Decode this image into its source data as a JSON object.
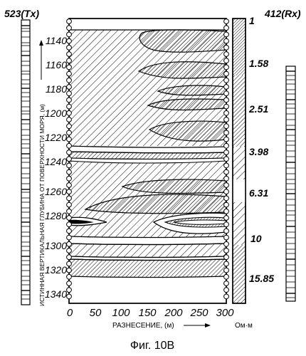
{
  "left_log": {
    "title": "523(Tx)"
  },
  "right_log": {
    "title": "412(Rx)"
  },
  "y_axis": {
    "label": "ИСТИННАЯ ВЕРТИКАЛЬНАЯ ГЛУБИНА ОТ ПОВЕРХНОСТИ МОРЯ, (м)",
    "ticks": [
      "1140",
      "1160",
      "1180",
      "1200",
      "1220",
      "1240",
      "1260",
      "1280",
      "1300",
      "1320",
      "1340"
    ]
  },
  "x_axis": {
    "label": "РАЗНЕСЕНИЕ, (м)",
    "ticks": [
      "0",
      "50",
      "100",
      "150",
      "200",
      "250",
      "300"
    ]
  },
  "scale": {
    "ticks": [
      "1",
      "1.58",
      "2.51",
      "3.98",
      "6.31",
      "10",
      "15.85"
    ],
    "unit": "Ом·м"
  },
  "caption": "Фиг. 10В",
  "colors": {
    "ink": "#000000",
    "paper": "#ffffff"
  }
}
